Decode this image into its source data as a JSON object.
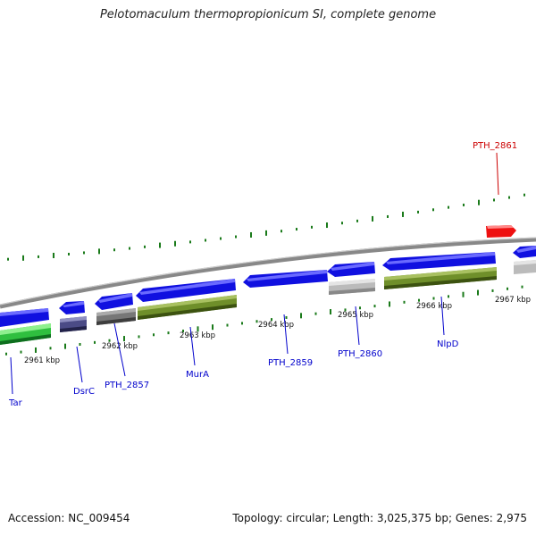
{
  "title": "Pelotomaculum thermopropionicum SI, complete genome",
  "footer": {
    "accession": "Accession: NC_009454",
    "summary": "Topology: circular; Length: 3,025,375 bp; Genes: 2,975"
  },
  "colors": {
    "cds_blue": "#1010e0",
    "highlight_red": "#ee1010",
    "green": "#2fbf3f",
    "olive": "#6f8f2a",
    "grey": "#777777",
    "light_grey": "#bbbbbb",
    "slate": "#4b4b86",
    "tick_green": "#1a7a1a",
    "label_blue": "#0000cc",
    "label_red": "#cc0000"
  },
  "ticks": [
    "2961 kbp",
    "2962 kbp",
    "2963 kbp",
    "2964 kbp",
    "2965 kbp",
    "2966 kbp",
    "2967 kbp"
  ],
  "genes": [
    {
      "label": "Tar",
      "color": "blue"
    },
    {
      "label": "DsrC",
      "color": "blue"
    },
    {
      "label": "PTH_2857",
      "color": "blue"
    },
    {
      "label": "MurA",
      "color": "blue"
    },
    {
      "label": "PTH_2859",
      "color": "blue"
    },
    {
      "label": "PTH_2860",
      "color": "blue"
    },
    {
      "label": "NlpD",
      "color": "blue"
    },
    {
      "label": "PTH_2861",
      "color": "red"
    }
  ]
}
